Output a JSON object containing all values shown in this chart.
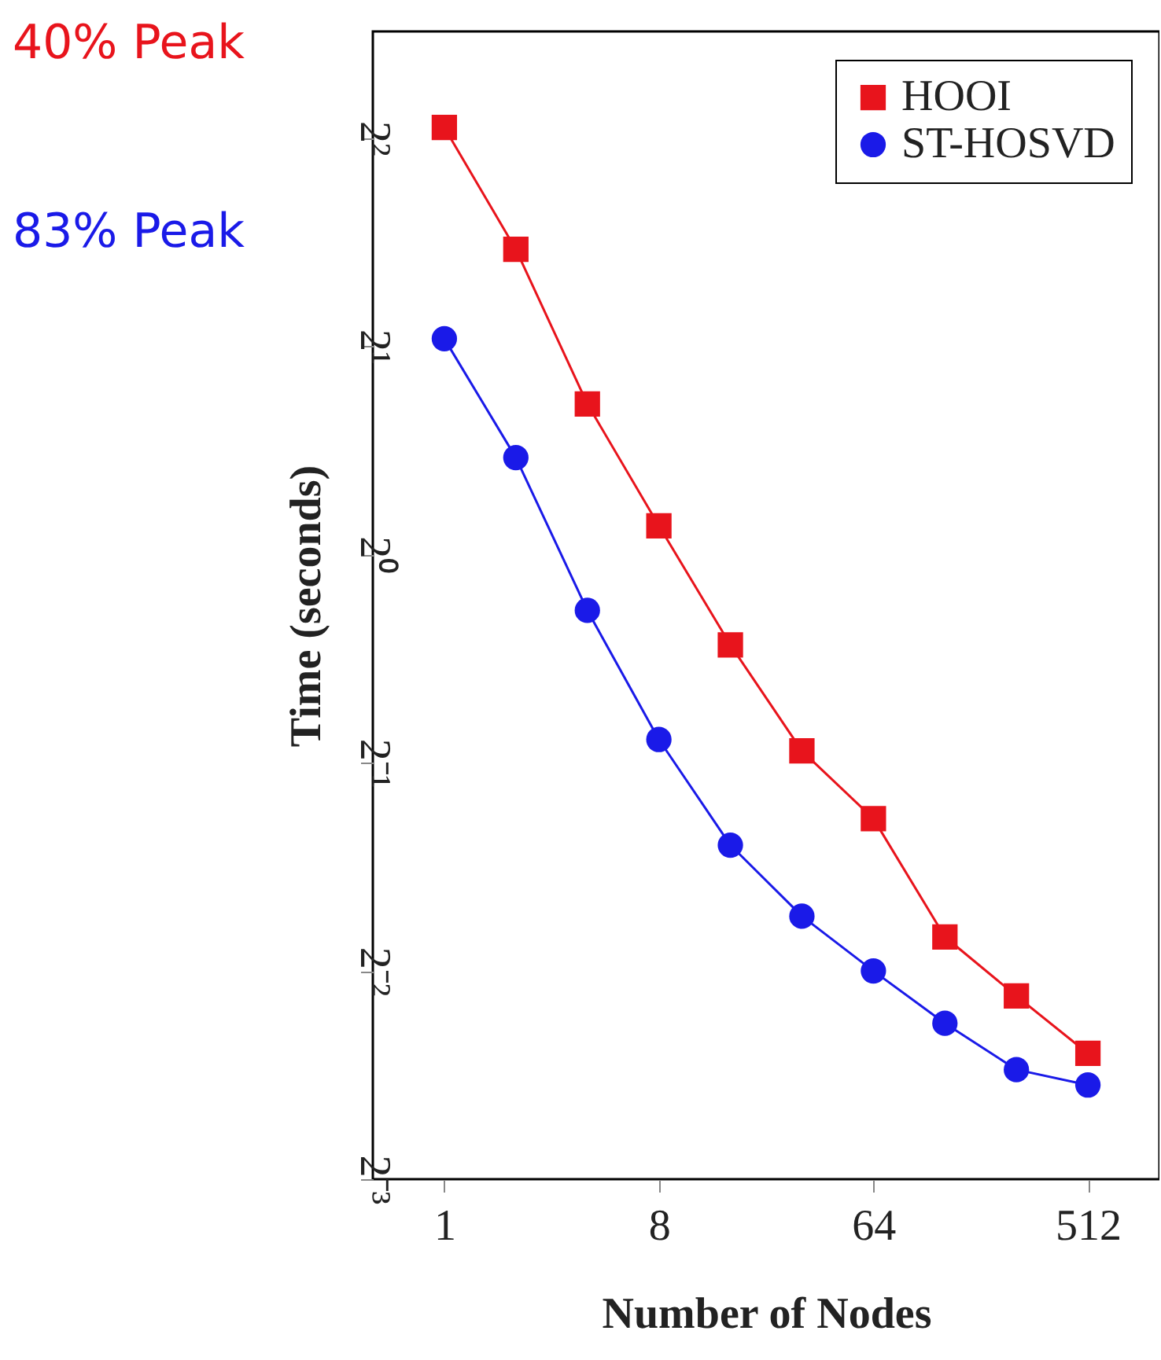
{
  "chart_data": {
    "type": "line",
    "xlabel": "Number of Nodes",
    "ylabel": "Time (seconds)",
    "log": "xy",
    "grid": false,
    "legend": "top right",
    "line_style": "solid",
    "x": [
      1,
      2,
      4,
      8,
      16,
      32,
      64,
      128,
      256,
      512
    ],
    "xlim": [
      0.5,
      1024
    ],
    "xticks": [
      1,
      8,
      64,
      512
    ],
    "ylim": [
      0.125,
      5.7
    ],
    "yticks": [
      {
        "value": 0.125,
        "label": "2⁻³"
      },
      {
        "value": 0.25,
        "label": "2⁻²"
      },
      {
        "value": 0.5,
        "label": "2⁻¹"
      },
      {
        "value": 1,
        "label": "2⁰"
      },
      {
        "value": 2,
        "label": "2¹"
      },
      {
        "value": 4,
        "label": "2²"
      }
    ],
    "series": [
      {
        "name": "HOOI",
        "color": "#e8141c",
        "marker": "square",
        "values": [
          4.14,
          2.76,
          1.65,
          1.1,
          0.74,
          0.52,
          0.415,
          0.28,
          0.23,
          0.19
        ]
      },
      {
        "name": "ST-HOSVD",
        "color": "#1a1ae8",
        "marker": "circle",
        "values": [
          2.05,
          1.38,
          0.83,
          0.54,
          0.38,
          0.3,
          0.25,
          0.21,
          0.18,
          0.171
        ]
      }
    ],
    "annotations": [
      "40% Peak",
      "83% Peak"
    ]
  }
}
